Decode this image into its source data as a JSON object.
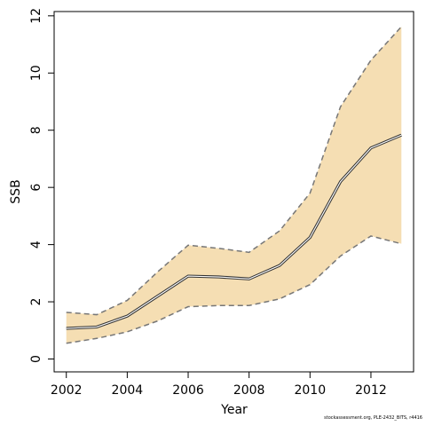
{
  "chart_data": {
    "type": "line",
    "xlabel": "Year",
    "ylabel": "SSB",
    "xlim": [
      2001.6,
      2013.4
    ],
    "ylim": [
      -0.45,
      12.15
    ],
    "x_ticks": [
      2002,
      2004,
      2006,
      2008,
      2010,
      2012
    ],
    "y_ticks": [
      0,
      2,
      4,
      6,
      8,
      10,
      12
    ],
    "grid": false,
    "legend": "none",
    "colors": {
      "band": "#f5deb3",
      "bound_line": "#777777",
      "estimate_line": "#333333"
    },
    "series": [
      {
        "x": [
          2002,
          2003,
          2004,
          2005,
          2006,
          2007,
          2008,
          2009,
          2010,
          2011,
          2012,
          2013
        ],
        "estimate": [
          1.07,
          1.12,
          1.5,
          2.2,
          2.9,
          2.87,
          2.8,
          3.27,
          4.25,
          6.2,
          7.38,
          7.83
        ],
        "lower": [
          0.55,
          0.72,
          0.95,
          1.33,
          1.83,
          1.87,
          1.87,
          2.1,
          2.6,
          3.6,
          4.3,
          4.03
        ],
        "upper": [
          1.63,
          1.55,
          2.05,
          3.05,
          3.98,
          3.87,
          3.73,
          4.48,
          5.8,
          8.82,
          10.45,
          11.62
        ]
      }
    ]
  },
  "footer_text": "stockassessment.org, PLE-2432_BITS, r4416"
}
